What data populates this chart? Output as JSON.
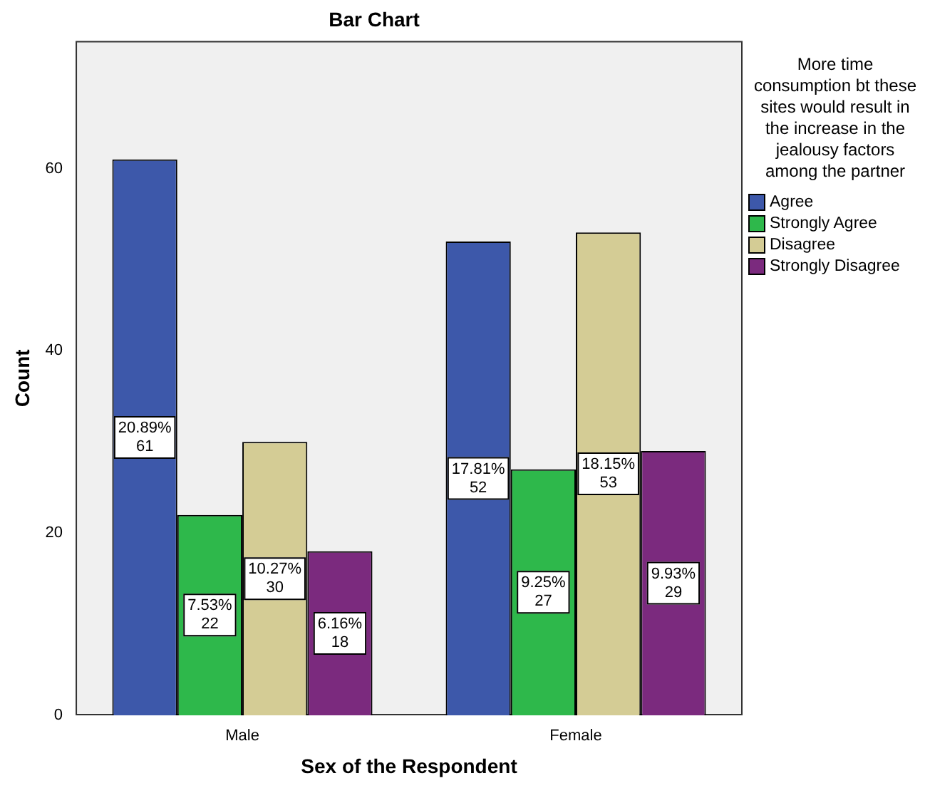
{
  "chart_data": {
    "type": "bar",
    "title": "Bar Chart",
    "xlabel": "Sex of the Respondent",
    "ylabel": "Count",
    "legend_title": "More time consumption bt these sites would result in the increase in the jealousy factors among the partner",
    "categories": [
      "Male",
      "Female"
    ],
    "series": [
      {
        "name": "Agree",
        "color": "#3d58aa",
        "values": [
          61,
          52
        ],
        "value_labels": [
          "20.89%\n61",
          "17.81%\n52"
        ]
      },
      {
        "name": "Strongly Agree",
        "color": "#2eb84b",
        "values": [
          22,
          27
        ],
        "value_labels": [
          "7.53%\n22",
          "9.25%\n27"
        ]
      },
      {
        "name": "Disagree",
        "color": "#d4cc95",
        "values": [
          30,
          53
        ],
        "value_labels": [
          "10.27%\n30",
          "18.15%\n53"
        ]
      },
      {
        "name": "Strongly Disagree",
        "color": "#7b2a7e",
        "values": [
          18,
          29
        ],
        "value_labels": [
          "6.16%\n18",
          "9.93%\n29"
        ]
      }
    ],
    "ylim": [
      0,
      74
    ],
    "yticks": [
      0,
      20,
      40,
      60
    ],
    "grid": false,
    "legend": "right"
  }
}
